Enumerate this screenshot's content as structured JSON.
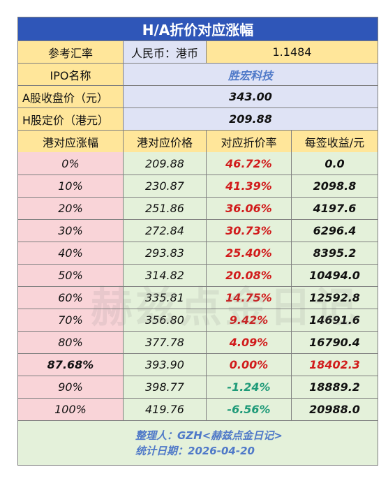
{
  "title": "H/A折价对应涨幅",
  "exchange": {
    "label": "参考汇率",
    "pair": "人民币：港币",
    "value": "1.1484"
  },
  "ipo": {
    "label": "IPO名称",
    "value": "胜宏科技"
  },
  "a_close": {
    "label": "A股收盘价（元）",
    "value": "343.00"
  },
  "h_price": {
    "label": "H股定价（港元）",
    "value": "209.88"
  },
  "headers": [
    "港对应涨幅",
    "港对应价格",
    "对应折价率",
    "每签收益/元"
  ],
  "rows": [
    {
      "rise": "0%",
      "price": "209.88",
      "discount": "46.72%",
      "profit": "0.0"
    },
    {
      "rise": "10%",
      "price": "230.87",
      "discount": "41.39%",
      "profit": "2098.8"
    },
    {
      "rise": "20%",
      "price": "251.86",
      "discount": "36.06%",
      "profit": "4197.6"
    },
    {
      "rise": "30%",
      "price": "272.84",
      "discount": "30.73%",
      "profit": "6296.4"
    },
    {
      "rise": "40%",
      "price": "293.83",
      "discount": "25.40%",
      "profit": "8395.2"
    },
    {
      "rise": "50%",
      "price": "314.82",
      "discount": "20.08%",
      "profit": "10494.0"
    },
    {
      "rise": "60%",
      "price": "335.81",
      "discount": "14.75%",
      "profit": "12592.8"
    },
    {
      "rise": "70%",
      "price": "356.80",
      "discount": "9.42%",
      "profit": "14691.6"
    },
    {
      "rise": "80%",
      "price": "377.78",
      "discount": "4.09%",
      "profit": "16790.4"
    },
    {
      "rise": "87.68%",
      "price": "393.90",
      "discount": "0.00%",
      "profit": "18402.3"
    },
    {
      "rise": "90%",
      "price": "398.77",
      "discount": "-1.24%",
      "profit": "18889.2"
    },
    {
      "rise": "100%",
      "price": "419.76",
      "discount": "-6.56%",
      "profit": "20988.0"
    }
  ],
  "footer": {
    "compiler": "整理人：GZH<赫兹点金日记>",
    "date": "统计日期：2026-04-20"
  },
  "watermark": "赫兹点金日记",
  "colors": {
    "title_bg": "#2f56b8",
    "yellow": "#ffe69a",
    "blue": "#dfe3f5",
    "pink": "#f9d4d8",
    "green": "#e4f1da",
    "red": "#d11b1b",
    "teal": "#1e9a78"
  }
}
